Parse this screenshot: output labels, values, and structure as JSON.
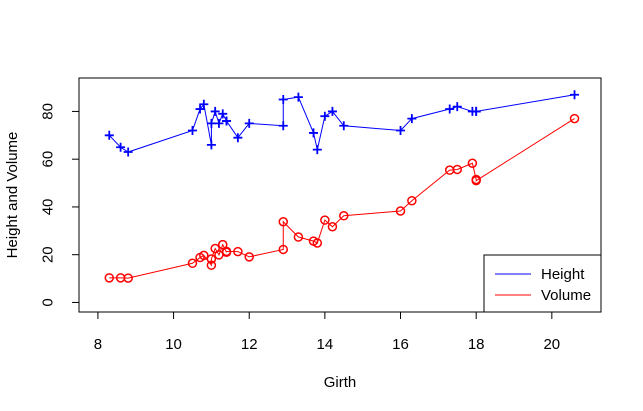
{
  "chart_data": {
    "type": "line",
    "xlabel": "Girth",
    "ylabel": "Height and Volume",
    "xlim": [
      7.5,
      21.3
    ],
    "ylim": [
      -4,
      94
    ],
    "xticks": [
      8,
      10,
      12,
      14,
      16,
      18,
      20
    ],
    "yticks": [
      0,
      20,
      40,
      60,
      80
    ],
    "xtick_labels": [
      "8",
      "10",
      "12",
      "14",
      "16",
      "18",
      "20"
    ],
    "ytick_labels": [
      "0",
      "20",
      "40",
      "60",
      "80"
    ],
    "x": [
      8.3,
      8.6,
      8.8,
      10.5,
      10.7,
      10.8,
      11.0,
      11.0,
      11.1,
      11.2,
      11.3,
      11.4,
      11.4,
      11.7,
      12.0,
      12.9,
      12.9,
      13.3,
      13.7,
      13.8,
      14.0,
      14.2,
      14.5,
      16.0,
      16.3,
      17.3,
      17.5,
      17.9,
      18.0,
      18.0,
      20.6
    ],
    "series": [
      {
        "name": "Height",
        "color": "#0000ff",
        "marker": "plus",
        "values": [
          70,
          65,
          63,
          72,
          81,
          83,
          66,
          75,
          80,
          75,
          79,
          76,
          76,
          69,
          75,
          74,
          85,
          86,
          71,
          64,
          78,
          80,
          74,
          72,
          77,
          81,
          82,
          80,
          80,
          80,
          87
        ]
      },
      {
        "name": "Volume",
        "color": "#ff0000",
        "marker": "circle",
        "values": [
          10.3,
          10.3,
          10.2,
          16.4,
          18.8,
          19.7,
          15.6,
          18.2,
          22.6,
          19.9,
          24.2,
          21.0,
          21.4,
          21.3,
          19.1,
          22.2,
          33.8,
          27.4,
          25.7,
          24.9,
          34.5,
          31.7,
          36.3,
          38.3,
          42.6,
          55.4,
          55.7,
          58.3,
          51.5,
          51.0,
          77.0
        ]
      }
    ],
    "legend": {
      "position": "bottom-right",
      "entries": [
        "Height",
        "Volume"
      ]
    }
  }
}
